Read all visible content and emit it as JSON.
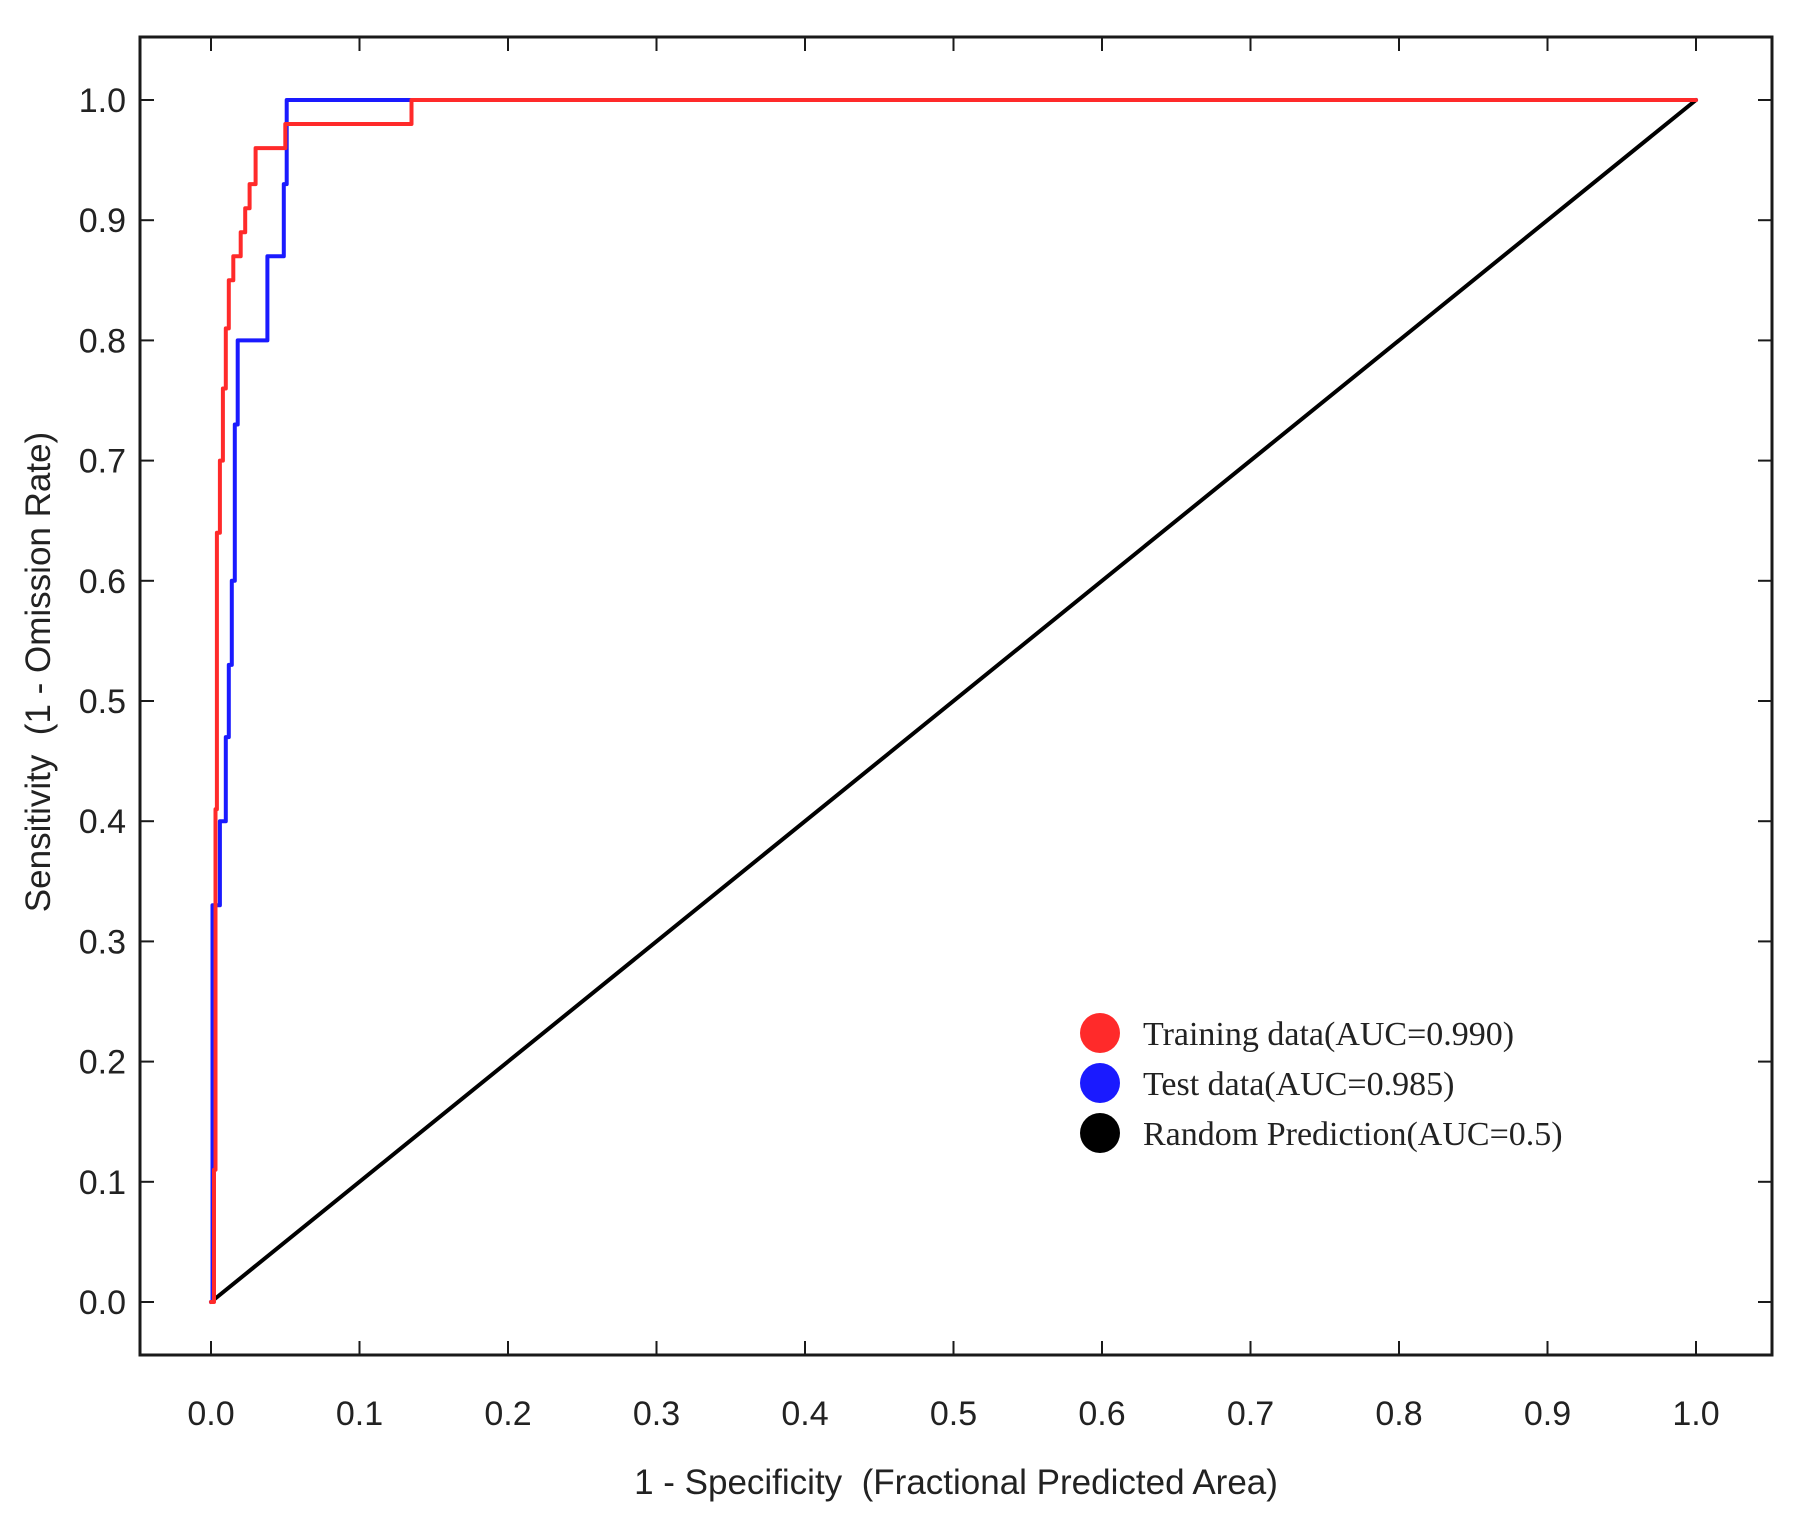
{
  "chart_data": {
    "type": "line",
    "xlabel": "1 - Specificity  (Fractional Predicted Area)",
    "ylabel": "Sensitivity  (1 - Omission Rate)",
    "xlim": [
      0.0,
      1.0
    ],
    "ylim": [
      0.0,
      1.0
    ],
    "xticks": [
      "0.0",
      "0.1",
      "0.2",
      "0.3",
      "0.4",
      "0.5",
      "0.6",
      "0.7",
      "0.8",
      "0.9",
      "1.0"
    ],
    "yticks": [
      "0.0",
      "0.1",
      "0.2",
      "0.3",
      "0.4",
      "0.5",
      "0.6",
      "0.7",
      "0.8",
      "0.9",
      "1.0"
    ],
    "grid": false,
    "legend_position": "bottom-right",
    "series": [
      {
        "name": "Training data(AUC=0.990)",
        "color": "#ff2a2a",
        "x": [
          0.0,
          0.002,
          0.002,
          0.003,
          0.003,
          0.004,
          0.004,
          0.006,
          0.006,
          0.008,
          0.008,
          0.01,
          0.01,
          0.012,
          0.012,
          0.015,
          0.015,
          0.02,
          0.02,
          0.023,
          0.023,
          0.026,
          0.026,
          0.03,
          0.03,
          0.05,
          0.05,
          0.135,
          0.135,
          1.0
        ],
        "y": [
          0.0,
          0.0,
          0.11,
          0.11,
          0.41,
          0.41,
          0.64,
          0.64,
          0.7,
          0.7,
          0.76,
          0.76,
          0.81,
          0.81,
          0.85,
          0.85,
          0.87,
          0.87,
          0.89,
          0.89,
          0.91,
          0.91,
          0.93,
          0.93,
          0.96,
          0.96,
          0.98,
          0.98,
          1.0,
          1.0
        ]
      },
      {
        "name": "Test data(AUC=0.985)",
        "color": "#1a1aff",
        "x": [
          0.0,
          0.001,
          0.001,
          0.006,
          0.006,
          0.01,
          0.01,
          0.012,
          0.012,
          0.014,
          0.014,
          0.016,
          0.016,
          0.018,
          0.018,
          0.038,
          0.038,
          0.049,
          0.049,
          0.051,
          0.051,
          1.0
        ],
        "y": [
          0.0,
          0.0,
          0.33,
          0.33,
          0.4,
          0.4,
          0.47,
          0.47,
          0.53,
          0.53,
          0.6,
          0.6,
          0.73,
          0.73,
          0.8,
          0.8,
          0.87,
          0.87,
          0.93,
          0.93,
          1.0,
          1.0
        ]
      },
      {
        "name": "Random Prediction(AUC=0.5)",
        "color": "#000000",
        "x": [
          0.0,
          1.0
        ],
        "y": [
          0.0,
          1.0
        ]
      }
    ]
  }
}
